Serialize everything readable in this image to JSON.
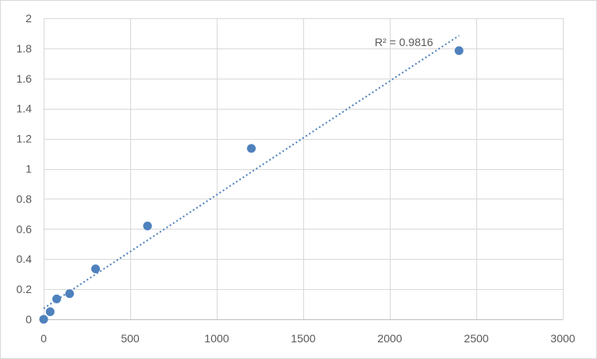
{
  "chart_data": {
    "type": "scatter",
    "title": "",
    "xlabel": "",
    "ylabel": "",
    "xlim": [
      0,
      3000
    ],
    "ylim": [
      0,
      2
    ],
    "x_ticks": [
      0,
      500,
      1000,
      1500,
      2000,
      2500,
      3000
    ],
    "y_ticks": [
      0,
      0.2,
      0.4,
      0.6,
      0.8,
      1,
      1.2,
      1.4,
      1.6,
      1.8,
      2
    ],
    "x_tick_labels": [
      "0",
      "500",
      "1000",
      "1500",
      "2000",
      "2500",
      "3000"
    ],
    "y_tick_labels": [
      "0",
      "0.2",
      "0.4",
      "0.6",
      "0.8",
      "1",
      "1.2",
      "1.4",
      "1.6",
      "1.8",
      "2"
    ],
    "grid": true,
    "legend": "none",
    "series": [
      {
        "x": [
          0,
          37.5,
          75,
          150,
          300,
          600,
          1200,
          2400
        ],
        "y": [
          0.0,
          0.05,
          0.135,
          0.17,
          0.335,
          0.62,
          1.135,
          1.785
        ],
        "color": "#4e81bd"
      }
    ],
    "trendline": {
      "type": "linear",
      "x_range": [
        0,
        2400
      ],
      "y_range": [
        0.072,
        1.885
      ],
      "color": "#4e81bd",
      "style": "dotted"
    },
    "annotations": [
      {
        "text": "R² = 0.9816"
      }
    ]
  }
}
